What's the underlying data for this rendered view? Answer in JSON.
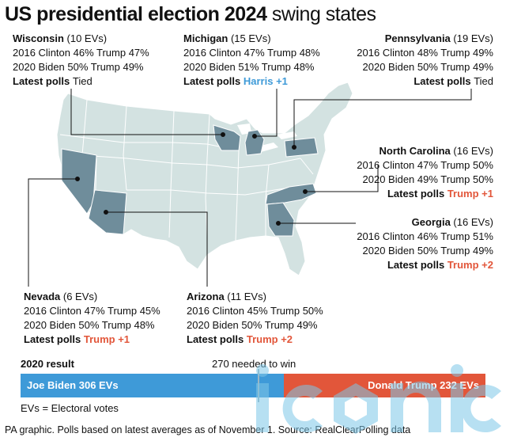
{
  "title": {
    "bold": "US presidential election 2024",
    "light": " swing states"
  },
  "states": {
    "wisconsin": {
      "name": "Wisconsin",
      "evs": "(10 EVs)",
      "line2016": "2016 Clinton 46% Trump 47%",
      "line2020": "2020 Biden 50% Trump 49%",
      "polls_label": "Latest polls",
      "polls_value": "Tied"
    },
    "michigan": {
      "name": "Michigan",
      "evs": "(15 EVs)",
      "line2016": "2016 Clinton 47% Trump 48%",
      "line2020": "2020 Biden 51% Trump 48%",
      "polls_label": "Latest polls",
      "polls_value": "Harris +1"
    },
    "pennsylvania": {
      "name": "Pennsylvania",
      "evs": "(19 EVs)",
      "line2016": "2016 Clinton 48% Trump 49%",
      "line2020": "2020 Biden 50% Trump 49%",
      "polls_label": "Latest polls",
      "polls_value": "Tied"
    },
    "north_carolina": {
      "name": "North Carolina",
      "evs": "(16 EVs)",
      "line2016": "2016 Clinton 47% Trump 50%",
      "line2020": "2020 Biden 49% Trump 50%",
      "polls_label": "Latest polls",
      "polls_value": "Trump +1"
    },
    "georgia": {
      "name": "Georgia",
      "evs": "(16 EVs)",
      "line2016": "2016 Clinton 46% Trump 51%",
      "line2020": "2020 Biden 50% Trump 49%",
      "polls_label": "Latest polls",
      "polls_value": "Trump +2"
    },
    "nevada": {
      "name": "Nevada",
      "evs": "(6 EVs)",
      "line2016": "2016 Clinton 47% Trump 45%",
      "line2020": "2020 Biden 50% Trump 48%",
      "polls_label": "Latest polls",
      "polls_value": "Trump +1"
    },
    "arizona": {
      "name": "Arizona",
      "evs": "(11 EVs)",
      "line2016": "2016 Clinton 45% Trump 50%",
      "line2020": "2020 Biden 50% Trump 49%",
      "polls_label": "Latest polls",
      "polls_value": "Trump +2"
    }
  },
  "result": {
    "title": "2020 result",
    "needed": "270 needed to win",
    "biden_label": "Joe Biden 306 EVs",
    "trump_label": "Donald Trump 232 EVs",
    "biden_evs": 306,
    "trump_evs": 232,
    "threshold": 270
  },
  "legend": "EVs = Electoral votes",
  "source": "PA graphic. Polls based on latest averages as of November 1. Source: RealClearPolling data",
  "watermark": "iconic",
  "colors": {
    "map_base": "#d3e2e1",
    "swing_state": "#6f8d9b",
    "trump": "#e2563a",
    "harris": "#3e9ad8",
    "biden": "#3e9ad8"
  }
}
